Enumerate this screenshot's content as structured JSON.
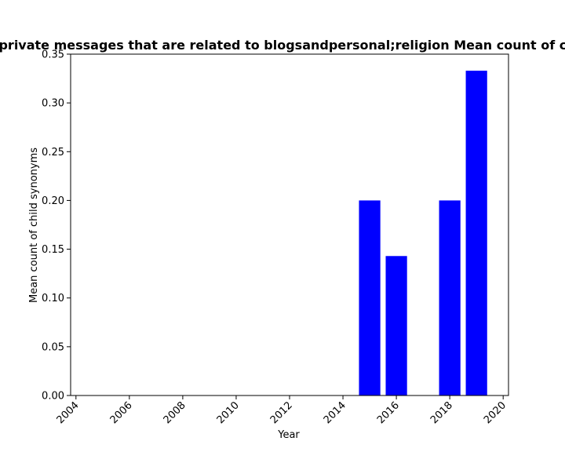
{
  "chart_data": {
    "type": "bar",
    "title": "Mean count of child synonyms in private messages that are related to blogsandpersonal;religion Mean count of child synonyms in private messages",
    "xlabel": "Year",
    "ylabel": "Mean count of child synonyms",
    "x": [
      2015,
      2016,
      2018,
      2019
    ],
    "values": [
      0.2,
      0.143,
      0.2,
      0.333
    ],
    "bar_width": 0.8,
    "bar_color": "#0000ff",
    "xlim": [
      2003.8,
      2020.2
    ],
    "ylim": [
      0,
      0.35
    ],
    "xticks": [
      "2004",
      "2006",
      "2008",
      "2010",
      "2012",
      "2014",
      "2016",
      "2018",
      "2020"
    ],
    "yticks": [
      "0.00",
      "0.05",
      "0.10",
      "0.15",
      "0.20",
      "0.25",
      "0.30",
      "0.35"
    ],
    "grid": false,
    "legend": null
  }
}
